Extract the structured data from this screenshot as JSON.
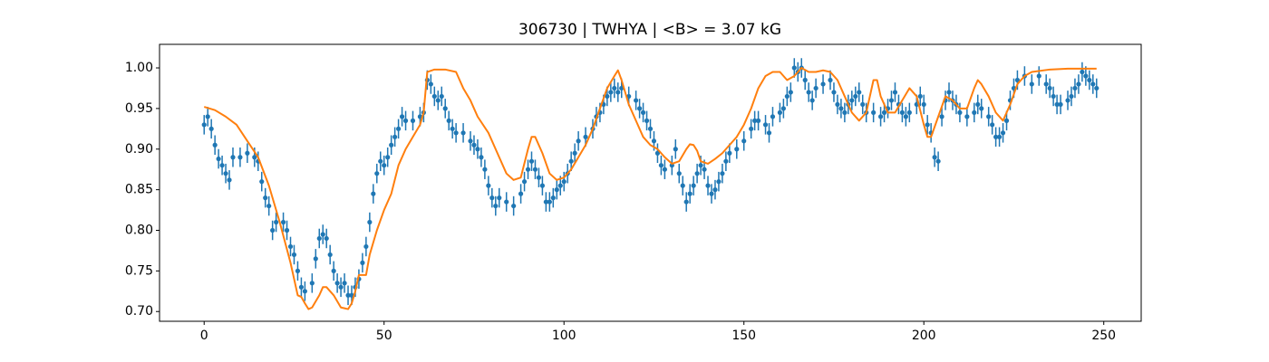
{
  "chart_data": {
    "type": "scatter",
    "title": "306730 | TWHYA | <B> = 3.07 kG",
    "xlim": [
      -12.4,
      260.4
    ],
    "ylim": [
      0.688,
      1.029
    ],
    "xticks": [
      0,
      50,
      100,
      150,
      200,
      250
    ],
    "yticks": [
      {
        "value": 0.7,
        "label": "0.70"
      },
      {
        "value": 0.75,
        "label": "0.75"
      },
      {
        "value": 0.8,
        "label": "0.80"
      },
      {
        "value": 0.85,
        "label": "0.85"
      },
      {
        "value": 0.9,
        "label": "0.90"
      },
      {
        "value": 0.95,
        "label": "0.95"
      },
      {
        "value": 1.0,
        "label": "1.00"
      }
    ],
    "series": [
      {
        "type": "errorbar",
        "color": "#1f77b4",
        "yerr": 0.012,
        "x": [
          0,
          1,
          2,
          3,
          4,
          5,
          6,
          7,
          8,
          10,
          12,
          14,
          15,
          16,
          17,
          18,
          19,
          20,
          22,
          23,
          24,
          25,
          26,
          27,
          28,
          30,
          31,
          32,
          33,
          34,
          35,
          36,
          37,
          38,
          39,
          40,
          41,
          42,
          43,
          44,
          45,
          46,
          47,
          48,
          49,
          50,
          51,
          52,
          53,
          54,
          55,
          56,
          58,
          60,
          61,
          62,
          63,
          64,
          65,
          66,
          67,
          68,
          69,
          70,
          72,
          74,
          75,
          76,
          77,
          78,
          79,
          80,
          81,
          82,
          84,
          86,
          88,
          89,
          90,
          91,
          92,
          93,
          94,
          95,
          96,
          97,
          98,
          99,
          100,
          101,
          102,
          103,
          104,
          106,
          108,
          109,
          110,
          111,
          112,
          113,
          114,
          115,
          116,
          118,
          120,
          121,
          122,
          123,
          124,
          125,
          126,
          127,
          128,
          130,
          131,
          132,
          133,
          134,
          135,
          136,
          137,
          138,
          139,
          140,
          141,
          142,
          143,
          144,
          145,
          146,
          148,
          150,
          152,
          153,
          154,
          156,
          157,
          158,
          160,
          161,
          162,
          163,
          164,
          165,
          166,
          167,
          168,
          169,
          170,
          172,
          174,
          175,
          176,
          177,
          178,
          179,
          180,
          181,
          182,
          183,
          184,
          186,
          188,
          189,
          190,
          191,
          192,
          193,
          194,
          195,
          196,
          198,
          199,
          200,
          201,
          202,
          203,
          204,
          205,
          206,
          207,
          208,
          209,
          210,
          212,
          214,
          215,
          216,
          218,
          219,
          220,
          221,
          222,
          223,
          224,
          225,
          226,
          228,
          230,
          232,
          234,
          235,
          236,
          237,
          238,
          240,
          241,
          242,
          243,
          244,
          245,
          246,
          247,
          248
        ],
        "values": [
          0.93,
          0.94,
          0.925,
          0.905,
          0.888,
          0.88,
          0.87,
          0.862,
          0.89,
          0.89,
          0.895,
          0.89,
          0.885,
          0.86,
          0.84,
          0.83,
          0.8,
          0.81,
          0.81,
          0.8,
          0.78,
          0.77,
          0.75,
          0.73,
          0.725,
          0.735,
          0.765,
          0.79,
          0.795,
          0.79,
          0.77,
          0.75,
          0.735,
          0.73,
          0.735,
          0.72,
          0.72,
          0.73,
          0.74,
          0.76,
          0.78,
          0.81,
          0.845,
          0.87,
          0.885,
          0.88,
          0.89,
          0.905,
          0.915,
          0.925,
          0.94,
          0.935,
          0.935,
          0.94,
          0.945,
          0.985,
          0.98,
          0.965,
          0.96,
          0.965,
          0.95,
          0.935,
          0.925,
          0.92,
          0.92,
          0.91,
          0.905,
          0.9,
          0.89,
          0.875,
          0.855,
          0.84,
          0.83,
          0.84,
          0.835,
          0.83,
          0.845,
          0.86,
          0.875,
          0.885,
          0.875,
          0.865,
          0.855,
          0.835,
          0.835,
          0.84,
          0.85,
          0.855,
          0.86,
          0.87,
          0.885,
          0.895,
          0.91,
          0.915,
          0.925,
          0.94,
          0.945,
          0.955,
          0.965,
          0.97,
          0.975,
          0.97,
          0.975,
          0.965,
          0.96,
          0.95,
          0.945,
          0.935,
          0.925,
          0.91,
          0.895,
          0.88,
          0.875,
          0.88,
          0.9,
          0.87,
          0.855,
          0.835,
          0.845,
          0.855,
          0.87,
          0.88,
          0.875,
          0.855,
          0.845,
          0.85,
          0.86,
          0.87,
          0.885,
          0.895,
          0.9,
          0.91,
          0.925,
          0.935,
          0.935,
          0.93,
          0.92,
          0.94,
          0.945,
          0.95,
          0.965,
          0.97,
          1.0,
          0.995,
          1.0,
          0.985,
          0.97,
          0.96,
          0.975,
          0.98,
          0.985,
          0.97,
          0.955,
          0.95,
          0.945,
          0.955,
          0.96,
          0.965,
          0.97,
          0.955,
          0.945,
          0.945,
          0.94,
          0.945,
          0.95,
          0.96,
          0.97,
          0.955,
          0.945,
          0.94,
          0.945,
          0.955,
          0.965,
          0.955,
          0.93,
          0.92,
          0.89,
          0.885,
          0.94,
          0.96,
          0.97,
          0.96,
          0.955,
          0.945,
          0.94,
          0.945,
          0.955,
          0.95,
          0.94,
          0.93,
          0.915,
          0.915,
          0.92,
          0.935,
          0.96,
          0.975,
          0.985,
          0.99,
          0.98,
          0.99,
          0.98,
          0.975,
          0.965,
          0.955,
          0.955,
          0.96,
          0.965,
          0.975,
          0.98,
          0.995,
          0.99,
          0.985,
          0.98,
          0.975
        ]
      },
      {
        "type": "line",
        "color": "#ff7f0e",
        "x": [
          0,
          3,
          6,
          9,
          12,
          15,
          18,
          21,
          24,
          26,
          27,
          28,
          29,
          30,
          32,
          33,
          34,
          36,
          38,
          40,
          41,
          42,
          43,
          45,
          46,
          48,
          50,
          52,
          54,
          56,
          58,
          60,
          61,
          62,
          64,
          67,
          70,
          72,
          74,
          76,
          79,
          82,
          84,
          86,
          88,
          90,
          91,
          92,
          94,
          96,
          98,
          100,
          102,
          104,
          106,
          108,
          110,
          112,
          114,
          115,
          116,
          118,
          120,
          122,
          124,
          126,
          128,
          130,
          132,
          134,
          135,
          136,
          137,
          138,
          140,
          142,
          144,
          146,
          148,
          150,
          152,
          154,
          156,
          158,
          160,
          162,
          164,
          166,
          168,
          170,
          172,
          174,
          176,
          178,
          180,
          182,
          184,
          186,
          187,
          188,
          190,
          192,
          194,
          196,
          198,
          200,
          201,
          202,
          204,
          206,
          208,
          210,
          212,
          214,
          215,
          216,
          218,
          220,
          222,
          224,
          226,
          228,
          230,
          235,
          240,
          248
        ],
        "values": [
          0.952,
          0.948,
          0.94,
          0.93,
          0.91,
          0.89,
          0.855,
          0.81,
          0.76,
          0.72,
          0.718,
          0.71,
          0.703,
          0.705,
          0.72,
          0.73,
          0.73,
          0.72,
          0.705,
          0.703,
          0.71,
          0.725,
          0.745,
          0.745,
          0.77,
          0.8,
          0.825,
          0.845,
          0.88,
          0.9,
          0.915,
          0.93,
          0.945,
          0.995,
          0.998,
          0.998,
          0.995,
          0.975,
          0.96,
          0.94,
          0.92,
          0.89,
          0.87,
          0.862,
          0.865,
          0.9,
          0.915,
          0.915,
          0.895,
          0.87,
          0.862,
          0.865,
          0.875,
          0.89,
          0.905,
          0.925,
          0.95,
          0.975,
          0.99,
          0.997,
          0.985,
          0.955,
          0.935,
          0.915,
          0.905,
          0.9,
          0.89,
          0.882,
          0.885,
          0.9,
          0.906,
          0.905,
          0.898,
          0.885,
          0.882,
          0.888,
          0.895,
          0.905,
          0.915,
          0.93,
          0.95,
          0.975,
          0.99,
          0.995,
          0.995,
          0.985,
          0.99,
          1.0,
          0.995,
          0.995,
          0.997,
          0.995,
          0.985,
          0.965,
          0.945,
          0.935,
          0.945,
          0.985,
          0.985,
          0.965,
          0.945,
          0.945,
          0.96,
          0.975,
          0.965,
          0.93,
          0.915,
          0.915,
          0.94,
          0.965,
          0.96,
          0.95,
          0.95,
          0.975,
          0.985,
          0.98,
          0.965,
          0.945,
          0.935,
          0.955,
          0.98,
          0.99,
          0.995,
          0.998,
          0.999,
          0.999
        ]
      }
    ]
  }
}
